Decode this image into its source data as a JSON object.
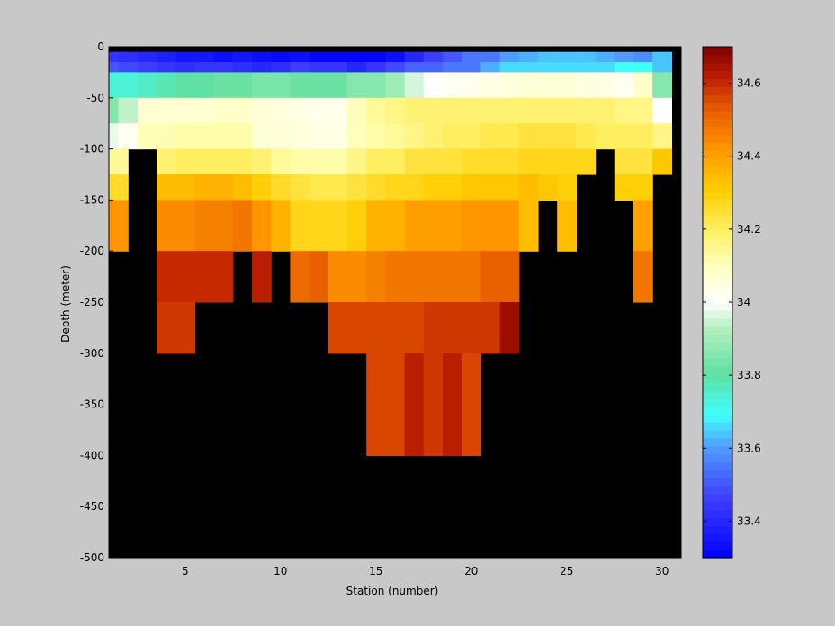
{
  "chart_data": {
    "type": "heatmap",
    "xlabel": "Station (number)",
    "ylabel": "Depth (meter)",
    "xlim": [
      1,
      31
    ],
    "ylim": [
      -500,
      0
    ],
    "x_ticks": [
      5,
      10,
      15,
      20,
      25,
      30
    ],
    "y_ticks": [
      0,
      -50,
      -100,
      -150,
      -200,
      -250,
      -300,
      -350,
      -400,
      -450,
      -500
    ],
    "colorbar": {
      "range": [
        33.3,
        34.7
      ],
      "ticks": [
        33.4,
        33.6,
        33.8,
        34,
        34.2,
        34.4,
        34.6
      ],
      "colormap": "jet-with-white-center"
    },
    "nodata_color": "#000000",
    "background_color": "#c8c8c8",
    "stations": [
      1,
      2,
      3,
      4,
      5,
      6,
      7,
      8,
      9,
      10,
      11,
      12,
      13,
      14,
      15,
      16,
      17,
      18,
      19,
      20,
      21,
      22,
      23,
      24,
      25,
      26,
      27,
      28,
      29,
      30
    ],
    "depth_bins": [
      {
        "top": -5,
        "bottom": -15
      },
      {
        "top": -15,
        "bottom": -25
      },
      {
        "top": -25,
        "bottom": -50
      },
      {
        "top": -50,
        "bottom": -75
      },
      {
        "top": -75,
        "bottom": -100
      },
      {
        "top": -100,
        "bottom": -125
      },
      {
        "top": -125,
        "bottom": -150
      },
      {
        "top": -150,
        "bottom": -200
      },
      {
        "top": -200,
        "bottom": -250
      },
      {
        "top": -250,
        "bottom": -300
      },
      {
        "top": -300,
        "bottom": -350
      },
      {
        "top": -350,
        "bottom": -400
      }
    ],
    "values": [
      [
        33.44,
        33.42,
        33.4,
        33.38,
        33.36,
        33.36,
        33.34,
        33.36,
        33.34,
        33.32,
        33.34,
        33.31,
        33.31,
        33.31,
        33.31,
        33.34,
        33.4,
        33.46,
        33.5,
        33.55,
        33.55,
        33.6,
        33.62,
        33.64,
        33.64,
        33.64,
        33.62,
        33.6,
        33.58,
        33.64
      ],
      [
        33.5,
        33.48,
        33.46,
        33.44,
        33.42,
        33.44,
        33.44,
        33.42,
        33.4,
        33.42,
        33.46,
        33.44,
        33.44,
        33.4,
        33.44,
        33.48,
        33.52,
        33.52,
        33.55,
        33.55,
        33.62,
        33.66,
        33.66,
        33.66,
        33.66,
        33.66,
        33.66,
        33.7,
        33.7,
        33.64
      ],
      [
        33.74,
        33.74,
        33.76,
        33.78,
        33.8,
        33.8,
        33.82,
        33.82,
        33.84,
        33.84,
        33.82,
        33.82,
        33.82,
        33.86,
        33.86,
        33.9,
        33.96,
        34.0,
        34.02,
        34.03,
        34.04,
        34.05,
        34.06,
        34.06,
        34.06,
        34.05,
        34.04,
        34.02,
        34.08,
        33.86
      ],
      [
        33.86,
        33.94,
        34.07,
        34.07,
        34.07,
        34.07,
        34.08,
        34.08,
        34.06,
        34.05,
        34.04,
        34.03,
        34.03,
        34.1,
        34.14,
        34.16,
        34.18,
        34.18,
        34.18,
        34.18,
        34.18,
        34.18,
        34.18,
        34.18,
        34.18,
        34.18,
        34.18,
        34.16,
        34.16,
        34.0
      ],
      [
        33.98,
        34.02,
        34.1,
        34.11,
        34.12,
        34.12,
        34.12,
        34.12,
        34.06,
        34.06,
        34.05,
        34.04,
        34.04,
        34.1,
        34.12,
        34.14,
        34.16,
        34.18,
        34.2,
        34.2,
        34.22,
        34.22,
        34.24,
        34.24,
        34.24,
        34.22,
        34.2,
        34.2,
        34.2,
        34.16
      ],
      [
        34.14,
        null,
        null,
        34.18,
        34.2,
        34.2,
        34.2,
        34.2,
        34.18,
        34.14,
        34.12,
        34.12,
        34.12,
        34.16,
        34.2,
        34.2,
        34.24,
        34.24,
        34.24,
        34.26,
        34.26,
        34.26,
        34.28,
        34.28,
        34.28,
        34.28,
        null,
        34.24,
        34.24,
        34.32
      ],
      [
        34.26,
        null,
        null,
        34.34,
        34.34,
        34.36,
        34.36,
        34.34,
        34.3,
        34.26,
        34.24,
        34.22,
        34.22,
        34.24,
        34.26,
        34.28,
        34.28,
        34.3,
        34.3,
        34.32,
        34.32,
        34.32,
        34.34,
        34.32,
        34.3,
        null,
        null,
        34.3,
        34.3,
        null
      ],
      [
        34.42,
        null,
        null,
        34.44,
        34.44,
        34.46,
        34.46,
        34.48,
        34.42,
        34.36,
        34.28,
        34.28,
        34.28,
        34.3,
        34.36,
        34.36,
        34.4,
        34.4,
        34.4,
        34.42,
        34.42,
        34.42,
        34.34,
        null,
        34.34,
        null,
        null,
        null,
        34.4,
        null
      ],
      [
        null,
        null,
        null,
        34.6,
        34.6,
        34.6,
        34.6,
        null,
        34.62,
        null,
        34.5,
        34.52,
        34.44,
        34.44,
        34.46,
        34.48,
        34.48,
        34.48,
        34.48,
        34.48,
        34.52,
        34.52,
        null,
        null,
        null,
        null,
        null,
        null,
        34.48,
        null
      ],
      [
        null,
        null,
        null,
        34.58,
        34.58,
        null,
        null,
        null,
        null,
        null,
        null,
        null,
        34.56,
        34.56,
        34.56,
        34.56,
        34.56,
        34.58,
        34.58,
        34.58,
        34.58,
        34.66,
        null,
        null,
        null,
        null,
        null,
        null,
        null,
        null
      ],
      [
        null,
        null,
        null,
        null,
        null,
        null,
        null,
        null,
        null,
        null,
        null,
        null,
        null,
        null,
        34.56,
        34.56,
        34.62,
        34.58,
        34.62,
        34.56,
        null,
        null,
        null,
        null,
        null,
        null,
        null,
        null,
        null,
        null
      ],
      [
        null,
        null,
        null,
        null,
        null,
        null,
        null,
        null,
        null,
        null,
        null,
        null,
        null,
        null,
        34.56,
        34.56,
        34.62,
        34.58,
        34.62,
        34.56,
        null,
        null,
        null,
        null,
        null,
        null,
        null,
        null,
        null,
        null
      ]
    ]
  }
}
